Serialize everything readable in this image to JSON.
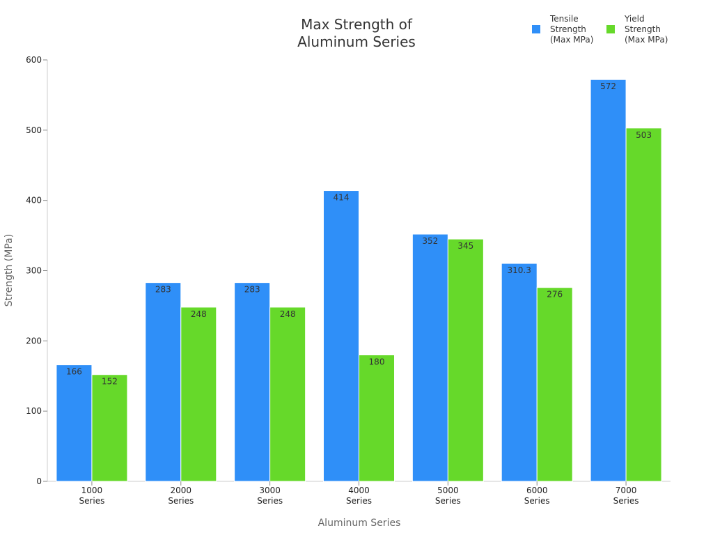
{
  "chart_data": {
    "type": "bar",
    "title": [
      "Max Strength of",
      "Aluminum Series"
    ],
    "xlabel": "Aluminum Series",
    "ylabel": "Strength (MPa)",
    "ylim": [
      0,
      600
    ],
    "yticks": [
      0,
      100,
      200,
      300,
      400,
      500,
      600
    ],
    "grid": false,
    "legend_position": "top-right",
    "categories": [
      [
        "1000",
        "Series"
      ],
      [
        "2000",
        "Series"
      ],
      [
        "3000",
        "Series"
      ],
      [
        "4000",
        "Series"
      ],
      [
        "5000",
        "Series"
      ],
      [
        "6000",
        "Series"
      ],
      [
        "7000",
        "Series"
      ]
    ],
    "series": [
      {
        "name": [
          "Tensile",
          "Strength",
          "(Max MPa)"
        ],
        "color": "#2f8ff8",
        "values": [
          166,
          283,
          283,
          414,
          352,
          310.3,
          572
        ]
      },
      {
        "name": [
          "Yield",
          "Strength",
          "(Max MPa)"
        ],
        "color": "#66d92a",
        "values": [
          152,
          248,
          248,
          180,
          345,
          276,
          503
        ]
      }
    ]
  }
}
